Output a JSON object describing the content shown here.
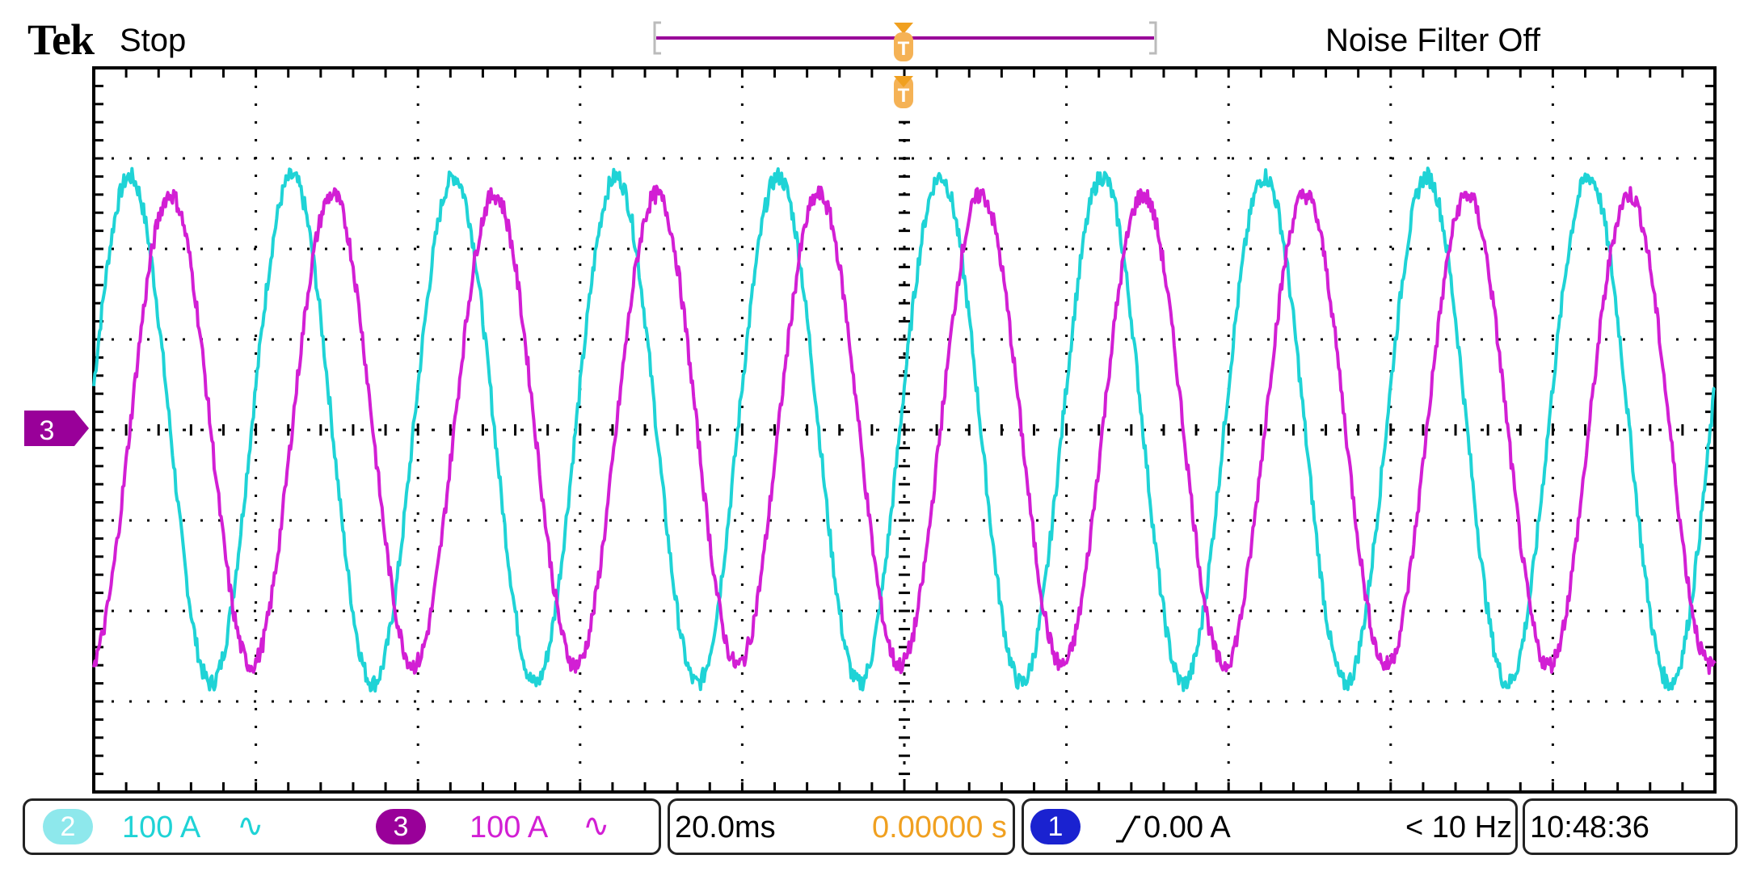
{
  "header": {
    "brand": "Tek",
    "run_state": "Stop",
    "noise_filter": "Noise Filter Off"
  },
  "colors": {
    "ch2": "#1fd3d6",
    "ch3": "#d21fd4",
    "ch3_marker": "#990099",
    "trigger": "#f0a020",
    "ch1_badge": "#1a22d0",
    "grid": "#000000"
  },
  "channel_marker": {
    "label": "3"
  },
  "status_bar": {
    "ch2": {
      "number": "2",
      "scale": "100 A",
      "coupling_icon": "ac-coupling-icon",
      "coupling_symbol": "∿"
    },
    "ch3": {
      "number": "3",
      "scale": "100 A",
      "coupling_icon": "ac-coupling-icon",
      "coupling_symbol": "∿"
    },
    "timebase": {
      "scale": "20.0ms",
      "position": "0.00000 s"
    },
    "trigger": {
      "source": "1",
      "slope_icon": "rising-edge-icon",
      "slope_symbol": "⁄",
      "level": "0.00 A",
      "frequency": "< 10 Hz"
    },
    "clock": "10:48:36"
  },
  "chart_data": {
    "type": "line",
    "xlabel": "",
    "ylabel": "",
    "x_divisions": 10,
    "y_divisions": 8,
    "xlim": [
      -100,
      100
    ],
    "ylim": [
      -400,
      400
    ],
    "x_units": "ms",
    "y_units": "A",
    "grid": true,
    "series": [
      {
        "name": "Channel 2",
        "frequency_hz": 50,
        "amplitude": 280,
        "phase_deg": 10,
        "noise": 10
      },
      {
        "name": "Channel 3",
        "frequency_hz": 50,
        "amplitude": 260,
        "phase_deg": -80,
        "noise": 10
      }
    ]
  }
}
